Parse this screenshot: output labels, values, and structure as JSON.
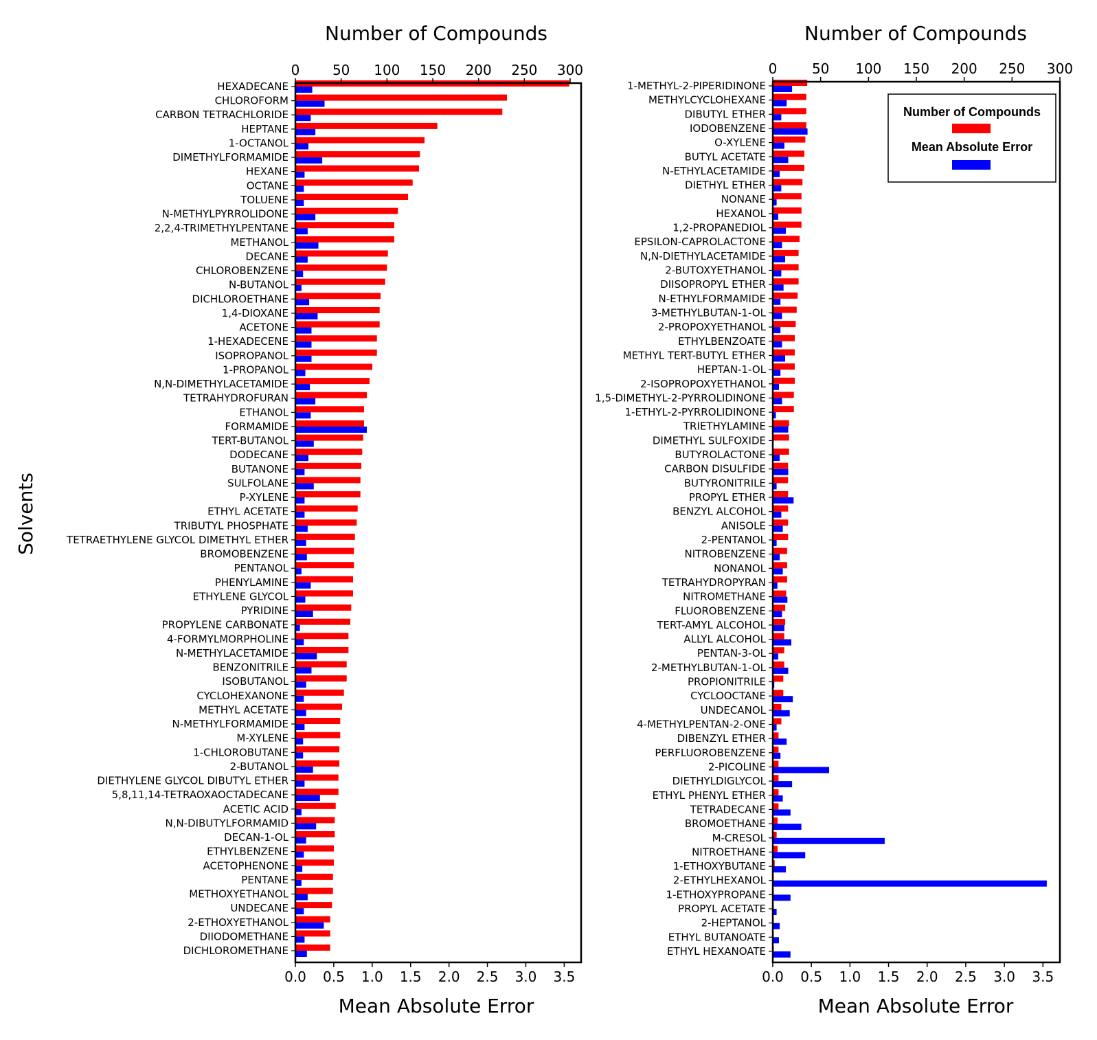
{
  "figure": {
    "ylabel": "Solvents",
    "legend": {
      "items": [
        {
          "label": "Number of Compounds",
          "color": "#ff0000"
        },
        {
          "label": "Mean Absolute Error",
          "color": "#0000ff"
        }
      ],
      "position": "top-right of right panel"
    }
  },
  "chart_data": [
    {
      "type": "bar",
      "orientation": "horizontal",
      "top_axis_label": "Number of Compounds",
      "bottom_axis_label": "Mean Absolute Error",
      "ylabel": "Solvents",
      "count_ticks": [
        "0",
        "50",
        "100",
        "150",
        "200",
        "250",
        "300"
      ],
      "count_range": [
        0,
        312
      ],
      "mae_ticks": [
        "0.0",
        "0.5",
        "1.0",
        "1.5",
        "2.0",
        "2.5",
        "3.0",
        "3.5"
      ],
      "mae_range": [
        0,
        3.72
      ],
      "categories": [
        "HEXADECANE",
        "CHLOROFORM",
        "CARBON TETRACHLORIDE",
        "HEPTANE",
        "1-OCTANOL",
        "DIMETHYLFORMAMIDE",
        "HEXANE",
        "OCTANE",
        "TOLUENE",
        "N-METHYLPYRROLIDONE",
        "2,2,4-TRIMETHYLPENTANE",
        "METHANOL",
        "DECANE",
        "CHLOROBENZENE",
        "N-BUTANOL",
        "DICHLOROETHANE",
        "1,4-DIOXANE",
        "ACETONE",
        "1-HEXADECENE",
        "ISOPROPANOL",
        "1-PROPANOL",
        "N,N-DIMETHYLACETAMIDE",
        "TETRAHYDROFURAN",
        "ETHANOL",
        "FORMAMIDE",
        "TERT-BUTANOL",
        "DODECANE",
        "BUTANONE",
        "SULFOLANE",
        "P-XYLENE",
        "ETHYL ACETATE",
        "TRIBUTYL PHOSPHATE",
        "TETRAETHYLENE GLYCOL DIMETHYL ETHER",
        "BROMOBENZENE",
        "PENTANOL",
        "PHENYLAMINE",
        "ETHYLENE GLYCOL",
        "PYRIDINE",
        "PROPYLENE CARBONATE",
        "4-FORMYLMORPHOLINE",
        "N-METHYLACETAMIDE",
        "BENZONITRILE",
        "ISOBUTANOL",
        "CYCLOHEXANONE",
        "METHYL ACETATE",
        "N-METHYLFORMAMIDE",
        "M-XYLENE",
        "1-CHLOROBUTANE",
        "2-BUTANOL",
        "DIETHYLENE GLYCOL DIBUTYL ETHER",
        "5,8,11,14-TETRAOXAOCTADECANE",
        "ACETIC ACID",
        "N,N-DIBUTYLFORMAMID",
        "DECAN-1-OL",
        "ETHYLBENZENE",
        "ACETOPHENONE",
        "PENTANE",
        "METHOXYETHANOL",
        "UNDECANE",
        "2-ETHOXYETHANOL",
        "DIIODOMETHANE",
        "DICHLOROMETHANE"
      ],
      "series": [
        {
          "name": "Number of Compounds",
          "color": "#ff0000",
          "values": [
            299,
            231,
            226,
            155,
            141,
            136,
            135,
            128,
            123,
            112,
            108,
            108,
            101,
            100,
            98,
            93,
            92,
            92,
            89,
            89,
            84,
            81,
            78,
            75,
            75,
            74,
            73,
            72,
            71,
            71,
            68,
            67,
            65,
            64,
            64,
            63,
            63,
            61,
            60,
            58,
            58,
            56,
            56,
            53,
            51,
            49,
            49,
            48,
            48,
            47,
            47,
            44,
            43,
            43,
            42,
            42,
            41,
            41,
            40,
            38,
            38,
            38
          ]
        },
        {
          "name": "Mean Absolute Error",
          "color": "#0000ff",
          "values": [
            0.22,
            0.38,
            0.2,
            0.26,
            0.17,
            0.35,
            0.12,
            0.11,
            0.11,
            0.26,
            0.16,
            0.3,
            0.16,
            0.1,
            0.08,
            0.18,
            0.29,
            0.21,
            0.21,
            0.21,
            0.13,
            0.19,
            0.26,
            0.2,
            0.93,
            0.24,
            0.17,
            0.12,
            0.24,
            0.12,
            0.12,
            0.16,
            0.14,
            0.15,
            0.08,
            0.2,
            0.13,
            0.23,
            0.06,
            0.11,
            0.28,
            0.21,
            0.14,
            0.11,
            0.14,
            0.12,
            0.1,
            0.1,
            0.23,
            0.12,
            0.32,
            0.08,
            0.27,
            0.14,
            0.11,
            0.09,
            0.08,
            0.16,
            0.11,
            0.37,
            0.12,
            0.15
          ]
        }
      ]
    },
    {
      "type": "bar",
      "orientation": "horizontal",
      "top_axis_label": "Number of Compounds",
      "bottom_axis_label": "Mean Absolute Error",
      "count_ticks": [
        "0",
        "50",
        "100",
        "150",
        "200",
        "250",
        "300"
      ],
      "count_range": [
        0,
        300
      ],
      "mae_ticks": [
        "0.0",
        "0.5",
        "1.0",
        "1.5",
        "2.0",
        "2.5",
        "3.0",
        "3.5"
      ],
      "mae_range": [
        0,
        3.72
      ],
      "categories": [
        "1-METHYL-2-PIPERIDINONE",
        "METHYLCYCLOHEXANE",
        "DIBUTYL ETHER",
        "IODOBENZENE",
        "O-XYLENE",
        "BUTYL ACETATE",
        "N-ETHYLACETAMIDE",
        "DIETHYL ETHER",
        "NONANE",
        "HEXANOL",
        "1,2-PROPANEDIOL",
        "EPSILON-CAPROLACTONE",
        "N,N-DIETHYLACETAMIDE",
        "2-BUTOXYETHANOL",
        "DIISOPROPYL ETHER",
        "N-ETHYLFORMAMIDE",
        "3-METHYLBUTAN-1-OL",
        "2-PROPOXYETHANOL",
        "ETHYLBENZOATE",
        "METHYL TERT-BUTYL ETHER",
        "HEPTAN-1-OL",
        "2-ISOPROPOXYETHANOL",
        "1,5-DIMETHYL-2-PYRROLIDINONE",
        "1-ETHYL-2-PYRROLIDINONE",
        "TRIETHYLAMINE",
        "DIMETHYL SULFOXIDE",
        "BUTYROLACTONE",
        "CARBON DISULFIDE",
        "BUTYRONITRILE",
        "PROPYL ETHER",
        "BENZYL ALCOHOL",
        "ANISOLE",
        "2-PENTANOL",
        "NITROBENZENE",
        "NONANOL",
        "TETRAHYDROPYRAN",
        "NITROMETHANE",
        "FLUOROBENZENE",
        "TERT-AMYL ALCOHOL",
        "ALLYL ALCOHOL",
        "PENTAN-3-OL",
        "2-METHYLBUTAN-1-OL",
        "PROPIONITRILE",
        "CYCLOOCTANE",
        "UNDECANOL",
        "4-METHYLPENTAN-2-ONE",
        "DIBENZYL ETHER",
        "PERFLUOROBENZENE",
        "2-PICOLINE",
        "DIETHYLDIGLYCOL",
        "ETHYL PHENYL ETHER",
        "TETRADECANE",
        "BROMOETHANE",
        "M-CRESOL",
        "NITROETHANE",
        "1-ETHOXYBUTANE",
        "2-ETHYLHEXANOL",
        "1-ETHOXYPROPANE",
        "PROPYL ACETATE",
        "2-HEPTANOL",
        "ETHYL BUTANOATE",
        "ETHYL HEXANOATE"
      ],
      "series": [
        {
          "name": "Number of Compounds",
          "color": "#ff0000",
          "values": [
            36,
            35,
            35,
            35,
            34,
            33,
            33,
            31,
            30,
            30,
            30,
            28,
            27,
            27,
            27,
            26,
            25,
            24,
            23,
            23,
            23,
            23,
            22,
            22,
            17,
            17,
            17,
            16,
            16,
            16,
            16,
            16,
            16,
            15,
            15,
            15,
            14,
            13,
            13,
            12,
            12,
            12,
            11,
            11,
            9,
            9,
            6,
            6,
            6,
            6,
            6,
            6,
            5,
            4,
            5,
            2,
            1,
            1,
            1,
            1,
            1,
            1
          ]
        },
        {
          "name": "Mean Absolute Error",
          "color": "#0000ff",
          "values": [
            0.25,
            0.18,
            0.11,
            0.45,
            0.15,
            0.2,
            0.09,
            0.11,
            0.05,
            0.07,
            0.17,
            0.12,
            0.16,
            0.11,
            0.14,
            0.1,
            0.12,
            0.1,
            0.12,
            0.16,
            0.1,
            0.08,
            0.12,
            0.04,
            0.2,
            0.01,
            0.09,
            0.2,
            0.05,
            0.27,
            0.11,
            0.13,
            0.05,
            0.09,
            0.13,
            0.06,
            0.19,
            0.12,
            0.15,
            0.24,
            0.07,
            0.2,
            0.02,
            0.26,
            0.22,
            0.05,
            0.18,
            0.1,
            0.73,
            0.25,
            0.13,
            0.23,
            0.37,
            1.45,
            0.42,
            0.17,
            3.55,
            0.23,
            0.05,
            0.09,
            0.08,
            0.23
          ]
        }
      ]
    }
  ]
}
